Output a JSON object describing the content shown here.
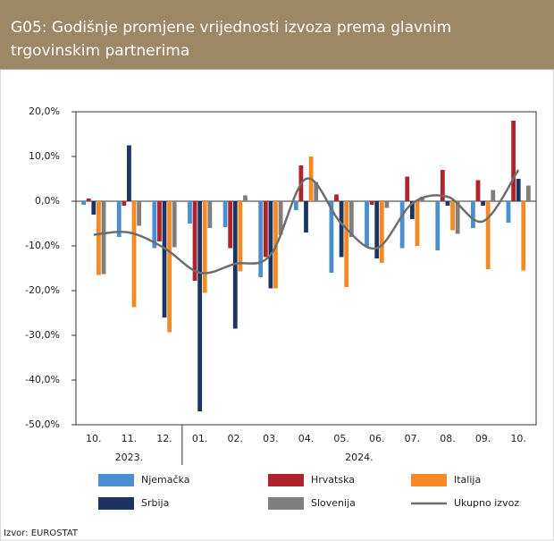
{
  "chart_data": {
    "type": "bar",
    "title": "G05: Godišnje promjene vrijednosti izvoza prema glavnim trgovinskim partnerima",
    "categories": [
      "10.",
      "11.",
      "12.",
      "01.",
      "02.",
      "03.",
      "04.",
      "05.",
      "06.",
      "07.",
      "08.",
      "09.",
      "10."
    ],
    "groups": [
      {
        "label": "2023.",
        "count": 3
      },
      {
        "label": "2024.",
        "count": 10
      }
    ],
    "series": [
      {
        "name": "Njemačka",
        "color": "#4a90d0",
        "values": [
          -0.8,
          -8,
          -10.5,
          -5,
          -5.8,
          -17,
          -2,
          -16,
          -10.3,
          -10.5,
          -11,
          -6,
          -4.8
        ]
      },
      {
        "name": "Hrvatska",
        "color": "#b0232a",
        "values": [
          0.6,
          -1,
          -9,
          -17.8,
          -10.5,
          -12.5,
          8,
          1.5,
          -0.8,
          5.5,
          7,
          4.7,
          18
        ]
      },
      {
        "name": "Italija",
        "color": "#f48a24",
        "values": [
          -16.5,
          -23.7,
          -29.3,
          -20.5,
          -15.7,
          -19.5,
          10,
          -19.2,
          -13.8,
          -10,
          -6.5,
          -15.2,
          -15.5
        ]
      },
      {
        "name": "Srbija",
        "color": "#1b3560",
        "values": [
          -3,
          12.5,
          -26,
          -47,
          -28.5,
          -19.5,
          -7,
          -12.5,
          -12.8,
          -4,
          -1,
          -1,
          5
        ]
      },
      {
        "name": "Slovenija",
        "color": "#7f7f7f",
        "values": [
          -16.3,
          -5.5,
          -10.3,
          -6,
          1.3,
          -7.5,
          4.3,
          -8,
          -1.5,
          1,
          -7.3,
          2.5,
          3.5
        ]
      },
      {
        "name": "Ukupno izvoz",
        "type": "line",
        "color": "#6e6e6e",
        "values": [
          -7.5,
          -7,
          -10.5,
          -16,
          -14,
          -12,
          5,
          -5,
          -10.5,
          -0.5,
          1,
          -4.5,
          7
        ]
      }
    ],
    "ylim": [
      -50,
      20
    ],
    "yticks": [
      {
        "value": -50,
        "label": "-50,0%"
      },
      {
        "value": -40,
        "label": "-40,0%"
      },
      {
        "value": -30,
        "label": "-30,0%"
      },
      {
        "value": -20,
        "label": "-20,0%"
      },
      {
        "value": -10,
        "label": "-10,0%"
      },
      {
        "value": 0,
        "label": "0,0%"
      },
      {
        "value": 10,
        "label": "10,0%"
      },
      {
        "value": 20,
        "label": "20,0%"
      }
    ],
    "source": "Izvor: EUROSTAT"
  }
}
